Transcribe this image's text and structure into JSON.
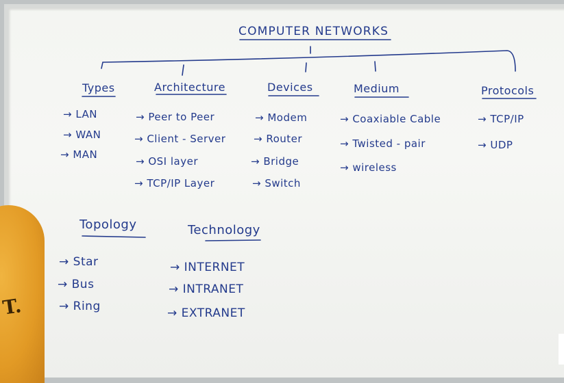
{
  "title": "COMPUTER NETWORKS",
  "columns": [
    {
      "heading": "Types",
      "items": [
        "→ LAN",
        "→ WAN",
        "→ MAN"
      ]
    },
    {
      "heading": "Architecture",
      "items": [
        "→ Peer to Peer",
        "→ Client - Server",
        "→ OSI layer",
        "→ TCP/IP Layer"
      ]
    },
    {
      "heading": "Devices",
      "items": [
        "→ Modem",
        "→ Router",
        "→ Bridge",
        "→ Switch"
      ]
    },
    {
      "heading": "Medium",
      "items": [
        "→ Coaxiable Cable",
        "→ Twisted - pair",
        "→ wireless"
      ]
    },
    {
      "heading": "Protocols",
      "items": [
        "→ TCP/IP",
        "→ UDP"
      ]
    }
  ],
  "lower": [
    {
      "heading": "Topology",
      "items": [
        "→ Star",
        "→ Bus",
        "→ Ring"
      ]
    },
    {
      "heading": "Technology",
      "items": [
        "→ INTERNET",
        "→ INTRANET",
        "→ EXTRANET"
      ]
    }
  ],
  "colors": {
    "ink": "#233a8c",
    "board": "#f4f5f2",
    "frame": "#d8dad8",
    "shirt": "#e29a25"
  },
  "foreground": {
    "shirt_letters": "T."
  }
}
